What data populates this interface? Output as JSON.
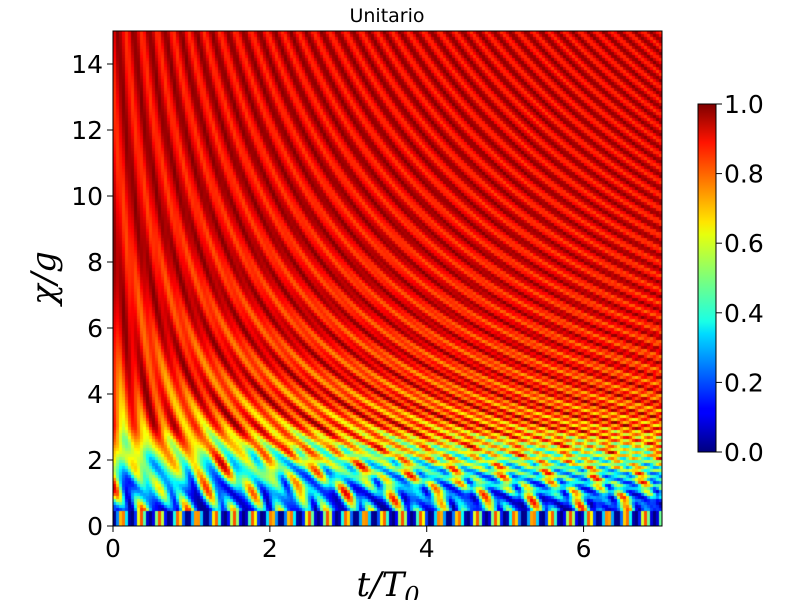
{
  "chart_data": {
    "type": "heatmap",
    "title": "Unitario",
    "xlabel": {
      "main": "t/T",
      "sub": "0"
    },
    "ylabel": "χ/g",
    "xlim": [
      0,
      7
    ],
    "ylim": [
      0,
      15
    ],
    "xticks": [
      0,
      2,
      4,
      6
    ],
    "yticks": [
      0,
      2,
      4,
      6,
      8,
      10,
      12,
      14
    ],
    "colorscale": "jet",
    "colorbar": {
      "range": [
        0,
        1
      ],
      "ticks": [
        0.0,
        0.2,
        0.4,
        0.6,
        0.8,
        1.0
      ],
      "tick_labels": [
        "0.0",
        "0.2",
        "0.4",
        "0.6",
        "0.8",
        "1.0"
      ]
    },
    "description_of_values": "Oscillating fringe pattern; values near 1.0 (red) for large χ/g, low values (black/blue) near χ/g < 3"
  }
}
